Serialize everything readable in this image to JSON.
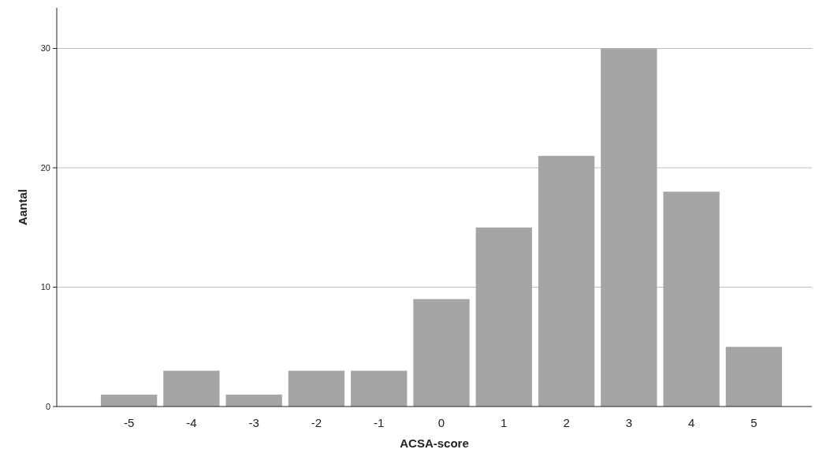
{
  "chart_data": {
    "type": "bar",
    "xlabel": "ACSA-score",
    "ylabel": "Aantal",
    "categories": [
      "-5",
      "-4",
      "-3",
      "-2",
      "-1",
      "0",
      "1",
      "2",
      "3",
      "4",
      "5"
    ],
    "values": [
      1,
      3,
      1,
      3,
      3,
      9,
      15,
      21,
      30,
      18,
      5
    ],
    "color": "#a5a5a5",
    "ylim": [
      0,
      33.4
    ],
    "yticks": [
      0,
      10,
      20,
      30
    ],
    "grid": "y"
  }
}
